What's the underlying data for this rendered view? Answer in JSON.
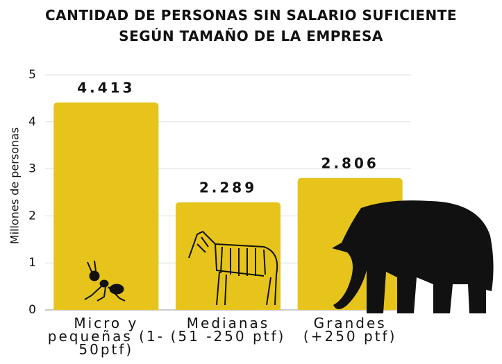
{
  "chart_data": {
    "type": "bar",
    "title": [
      "CANTIDAD DE PERSONAS SIN SALARIO SUFICIENTE",
      "SEGÚN TAMAÑO DE LA EMPRESA"
    ],
    "y_label": "Millones de personas",
    "categories": [
      "Micro y pequeñas (1-50ptf)",
      "Medianas (51 -250 ptf)",
      "Grandes (+250 ptf)"
    ],
    "values": [
      4.413,
      2.289,
      2.806
    ],
    "color": "#e6c41c",
    "ylim": [
      0,
      5
    ],
    "yticks": [
      0,
      1,
      2,
      3,
      4,
      5
    ],
    "grid": true
  }
}
